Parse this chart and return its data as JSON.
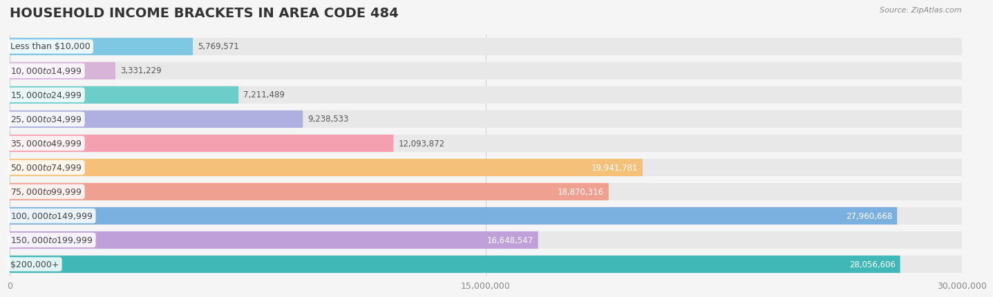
{
  "title": "HOUSEHOLD INCOME BRACKETS IN AREA CODE 484",
  "source": "Source: ZipAtlas.com",
  "categories": [
    "Less than $10,000",
    "$10,000 to $14,999",
    "$15,000 to $24,999",
    "$25,000 to $34,999",
    "$35,000 to $49,999",
    "$50,000 to $74,999",
    "$75,000 to $99,999",
    "$100,000 to $149,999",
    "$150,000 to $199,999",
    "$200,000+"
  ],
  "values": [
    5769571,
    3331229,
    7211489,
    9238533,
    12093872,
    19941781,
    18870316,
    27960668,
    16648547,
    28056606
  ],
  "bar_colors": [
    "#7ec8e3",
    "#d8b4d8",
    "#6dcdc8",
    "#b0b0e0",
    "#f4a0b0",
    "#f4c07a",
    "#f0a090",
    "#7ab0e0",
    "#c0a0d8",
    "#40b8b8"
  ],
  "label_colors": [
    "#555555",
    "#555555",
    "#555555",
    "#555555",
    "#555555",
    "#ffffff",
    "#ffffff",
    "#ffffff",
    "#555555",
    "#ffffff"
  ],
  "background_color": "#f5f5f5",
  "bar_background_color": "#e8e8e8",
  "xlim": [
    0,
    30000000
  ],
  "xticks": [
    0,
    15000000,
    30000000
  ],
  "xtick_labels": [
    "0",
    "15,000,000",
    "30,000,000"
  ],
  "title_fontsize": 14,
  "label_fontsize": 9,
  "value_fontsize": 8.5
}
